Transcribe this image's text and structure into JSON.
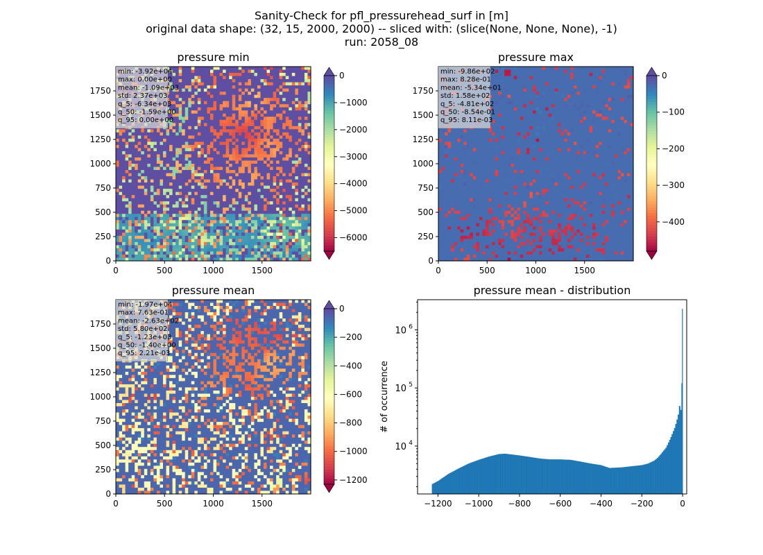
{
  "figure": {
    "suptitle_lines": [
      "Sanity-Check for pfl_pressurehead_surf in [m]",
      "original data shape: (32, 15, 2000, 2000) -- sliced with: (slice(None, None, None), -1)",
      "run: 2058_08"
    ]
  },
  "chart_data": [
    {
      "type": "heatmap",
      "title": "pressure min",
      "x_ticks": [
        0,
        500,
        1000,
        1500
      ],
      "y_ticks": [
        0,
        250,
        500,
        750,
        1000,
        1250,
        1500,
        1750
      ],
      "xlim": [
        0,
        2000
      ],
      "ylim": [
        0,
        2000
      ],
      "colormap": "Spectral",
      "colorbar": {
        "vmin": -6500,
        "vmax": 0,
        "ticks": [
          0,
          -1000,
          -2000,
          -3000,
          -4000,
          -5000,
          -6000
        ],
        "extend": "both"
      },
      "stats": [
        "min: -3.92e+04",
        "max: 0.00e+00",
        "mean: -1.09e+03",
        "std: 2.37e+03",
        "q_5: -6.34e+03",
        "q_50: -1.59e+00",
        "q_95: 0.00e+00"
      ]
    },
    {
      "type": "heatmap",
      "title": "pressure max",
      "x_ticks": [
        0,
        500,
        1000,
        1500
      ],
      "y_ticks": [
        0,
        250,
        500,
        750,
        1000,
        1250,
        1500,
        1750
      ],
      "xlim": [
        0,
        2000
      ],
      "ylim": [
        0,
        2000
      ],
      "colormap": "Spectral",
      "colorbar": {
        "vmin": -480,
        "vmax": 0,
        "ticks": [
          0,
          -100,
          -200,
          -300,
          -400
        ],
        "extend": "both"
      },
      "stats": [
        "min: -9.86e+02",
        "max: 8.28e-01",
        "mean: -5.34e+01",
        "std: 1.58e+02",
        "q_5: -4.81e+02",
        "q_50: -8.54e-01",
        "q_95: 8.11e-03"
      ]
    },
    {
      "type": "heatmap",
      "title": "pressure mean",
      "x_ticks": [
        0,
        500,
        1000,
        1500
      ],
      "y_ticks": [
        0,
        250,
        500,
        750,
        1000,
        1250,
        1500,
        1750
      ],
      "xlim": [
        0,
        2000
      ],
      "ylim": [
        0,
        2000
      ],
      "colormap": "Spectral",
      "colorbar": {
        "vmin": -1230,
        "vmax": 0,
        "ticks": [
          0,
          -200,
          -400,
          -600,
          -800,
          -1000,
          -1200
        ],
        "extend": "both"
      },
      "stats": [
        "min: -1.97e+04",
        "max: 7.63e-01",
        "mean: -2.63e+02",
        "std: 5.80e+02",
        "q_5: -1.23e+03",
        "q_50: -1.40e+00",
        "q_95: 2.21e-03"
      ]
    },
    {
      "type": "bar",
      "title": "pressure mean - distribution",
      "xlabel": "",
      "ylabel": "# of occurrence",
      "y_scale": "log",
      "xlim": [
        -1300,
        20
      ],
      "ylim": [
        1500,
        3300000
      ],
      "x_ticks": [
        -1200,
        -1000,
        -800,
        -600,
        -400,
        -200,
        0
      ],
      "y_ticks": [
        {
          "value": 10000,
          "base": "10",
          "exp": "4"
        },
        {
          "value": 100000,
          "base": "10",
          "exp": "5"
        },
        {
          "value": 1000000,
          "base": "10",
          "exp": "6"
        }
      ],
      "bar_color": "#1f77b4",
      "bins_start": -1230,
      "bin_width": 6,
      "profile": [
        [
          -1230,
          2200
        ],
        [
          -1200,
          2500
        ],
        [
          -1150,
          3300
        ],
        [
          -1100,
          4100
        ],
        [
          -1050,
          5000
        ],
        [
          -1000,
          5800
        ],
        [
          -950,
          6600
        ],
        [
          -900,
          7300
        ],
        [
          -870,
          7400
        ],
        [
          -850,
          7250
        ],
        [
          -800,
          6900
        ],
        [
          -750,
          6500
        ],
        [
          -700,
          6100
        ],
        [
          -650,
          5900
        ],
        [
          -600,
          5900
        ],
        [
          -550,
          5800
        ],
        [
          -500,
          5400
        ],
        [
          -450,
          5000
        ],
        [
          -400,
          4700
        ],
        [
          -360,
          4200
        ],
        [
          -300,
          4300
        ],
        [
          -250,
          4500
        ],
        [
          -200,
          4700
        ],
        [
          -170,
          5000
        ],
        [
          -140,
          5600
        ],
        [
          -120,
          6400
        ],
        [
          -100,
          7800
        ],
        [
          -80,
          9500
        ],
        [
          -60,
          13500
        ],
        [
          -40,
          20000
        ],
        [
          -30,
          26000
        ],
        [
          -20,
          36000
        ],
        [
          -14,
          52000
        ],
        [
          -8,
          40000
        ],
        [
          -4,
          45000
        ],
        [
          0,
          2300000
        ]
      ]
    }
  ]
}
